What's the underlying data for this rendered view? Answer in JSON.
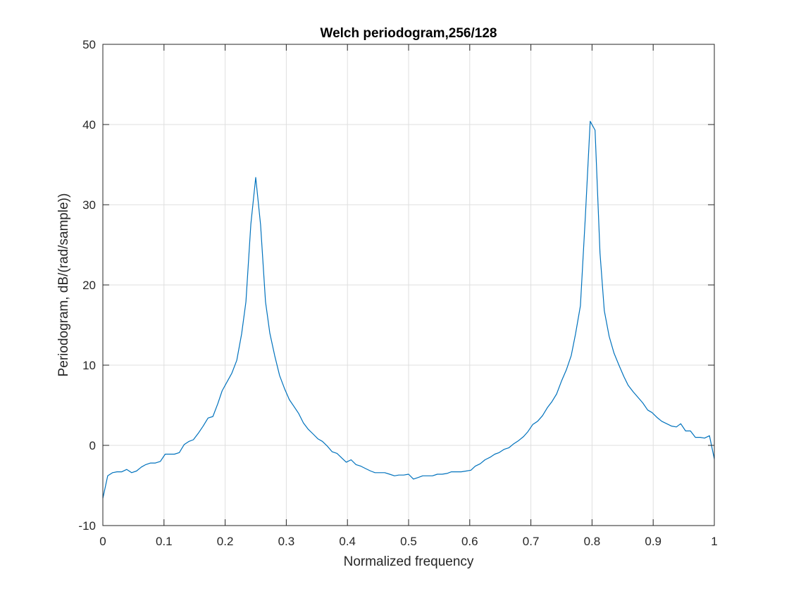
{
  "chart_data": {
    "type": "line",
    "title": "Welch periodogram,256/128",
    "xlabel": "Normalized frequency",
    "ylabel": "Periodogram, dB/(rad/sample))",
    "xlim": [
      0,
      1
    ],
    "ylim": [
      -10,
      50
    ],
    "xticks": [
      0,
      0.1,
      0.2,
      0.3,
      0.4,
      0.5,
      0.6,
      0.7,
      0.8,
      0.9,
      1
    ],
    "xtick_labels": [
      "0",
      "0.1",
      "0.2",
      "0.3",
      "0.4",
      "0.5",
      "0.6",
      "0.7",
      "0.8",
      "0.9",
      "1"
    ],
    "yticks": [
      -10,
      0,
      10,
      20,
      30,
      40,
      50
    ],
    "ytick_labels": [
      "-10",
      "0",
      "10",
      "20",
      "30",
      "40",
      "50"
    ],
    "grid": true,
    "line_color": "#0072bd",
    "grid_color": "#dfdfdf",
    "series": [
      {
        "x": [
          0,
          0.008,
          0.016,
          0.023,
          0.031,
          0.039,
          0.047,
          0.055,
          0.063,
          0.07,
          0.078,
          0.086,
          0.094,
          0.102,
          0.109,
          0.117,
          0.125,
          0.133,
          0.141,
          0.148,
          0.156,
          0.164,
          0.172,
          0.18,
          0.188,
          0.195,
          0.203,
          0.211,
          0.219,
          0.227,
          0.234,
          0.242,
          0.25,
          0.258,
          0.266,
          0.273,
          0.281,
          0.289,
          0.297,
          0.305,
          0.313,
          0.32,
          0.328,
          0.336,
          0.344,
          0.352,
          0.359,
          0.367,
          0.375,
          0.383,
          0.391,
          0.398,
          0.406,
          0.414,
          0.422,
          0.43,
          0.438,
          0.445,
          0.453,
          0.461,
          0.469,
          0.477,
          0.484,
          0.492,
          0.5,
          0.508,
          0.516,
          0.523,
          0.531,
          0.539,
          0.547,
          0.555,
          0.563,
          0.57,
          0.578,
          0.586,
          0.594,
          0.602,
          0.609,
          0.617,
          0.625,
          0.633,
          0.641,
          0.648,
          0.656,
          0.664,
          0.672,
          0.68,
          0.688,
          0.695,
          0.703,
          0.711,
          0.719,
          0.727,
          0.734,
          0.742,
          0.75,
          0.758,
          0.766,
          0.773,
          0.781,
          0.789,
          0.797,
          0.805,
          0.813,
          0.82,
          0.828,
          0.836,
          0.844,
          0.852,
          0.859,
          0.867,
          0.875,
          0.883,
          0.891,
          0.898,
          0.906,
          0.914,
          0.922,
          0.93,
          0.938,
          0.945,
          0.953,
          0.961,
          0.969,
          0.977,
          0.984,
          0.992,
          1
        ],
        "y": [
          -6.6,
          -3.8,
          -3.4,
          -3.3,
          -3.3,
          -3.0,
          -3.4,
          -3.2,
          -2.7,
          -2.4,
          -2.2,
          -2.2,
          -2.0,
          -1.1,
          -1.1,
          -1.1,
          -0.9,
          0.1,
          0.5,
          0.7,
          1.5,
          2.4,
          3.4,
          3.6,
          5.2,
          6.8,
          7.9,
          9.0,
          10.6,
          13.9,
          17.9,
          27.6,
          33.4,
          27.5,
          17.9,
          14.0,
          11.2,
          8.7,
          7.1,
          5.7,
          4.8,
          4.0,
          2.8,
          2.0,
          1.4,
          0.8,
          0.5,
          -0.1,
          -0.8,
          -1.0,
          -1.6,
          -2.1,
          -1.8,
          -2.4,
          -2.6,
          -2.9,
          -3.2,
          -3.4,
          -3.4,
          -3.4,
          -3.6,
          -3.8,
          -3.7,
          -3.7,
          -3.6,
          -4.2,
          -4.0,
          -3.8,
          -3.8,
          -3.8,
          -3.6,
          -3.6,
          -3.5,
          -3.3,
          -3.3,
          -3.3,
          -3.2,
          -3.1,
          -2.6,
          -2.3,
          -1.8,
          -1.5,
          -1.1,
          -0.9,
          -0.5,
          -0.3,
          0.2,
          0.6,
          1.1,
          1.7,
          2.6,
          3.0,
          3.7,
          4.7,
          5.4,
          6.4,
          8.0,
          9.4,
          11.2,
          13.9,
          17.4,
          28.5,
          40.4,
          39.3,
          24.0,
          16.8,
          13.6,
          11.5,
          10.0,
          8.6,
          7.5,
          6.7,
          6.0,
          5.3,
          4.4,
          4.1,
          3.5,
          3.0,
          2.7,
          2.4,
          2.3,
          2.7,
          1.8,
          1.8,
          1.0,
          1.0,
          0.9,
          1.2,
          -1.7
        ]
      }
    ]
  }
}
